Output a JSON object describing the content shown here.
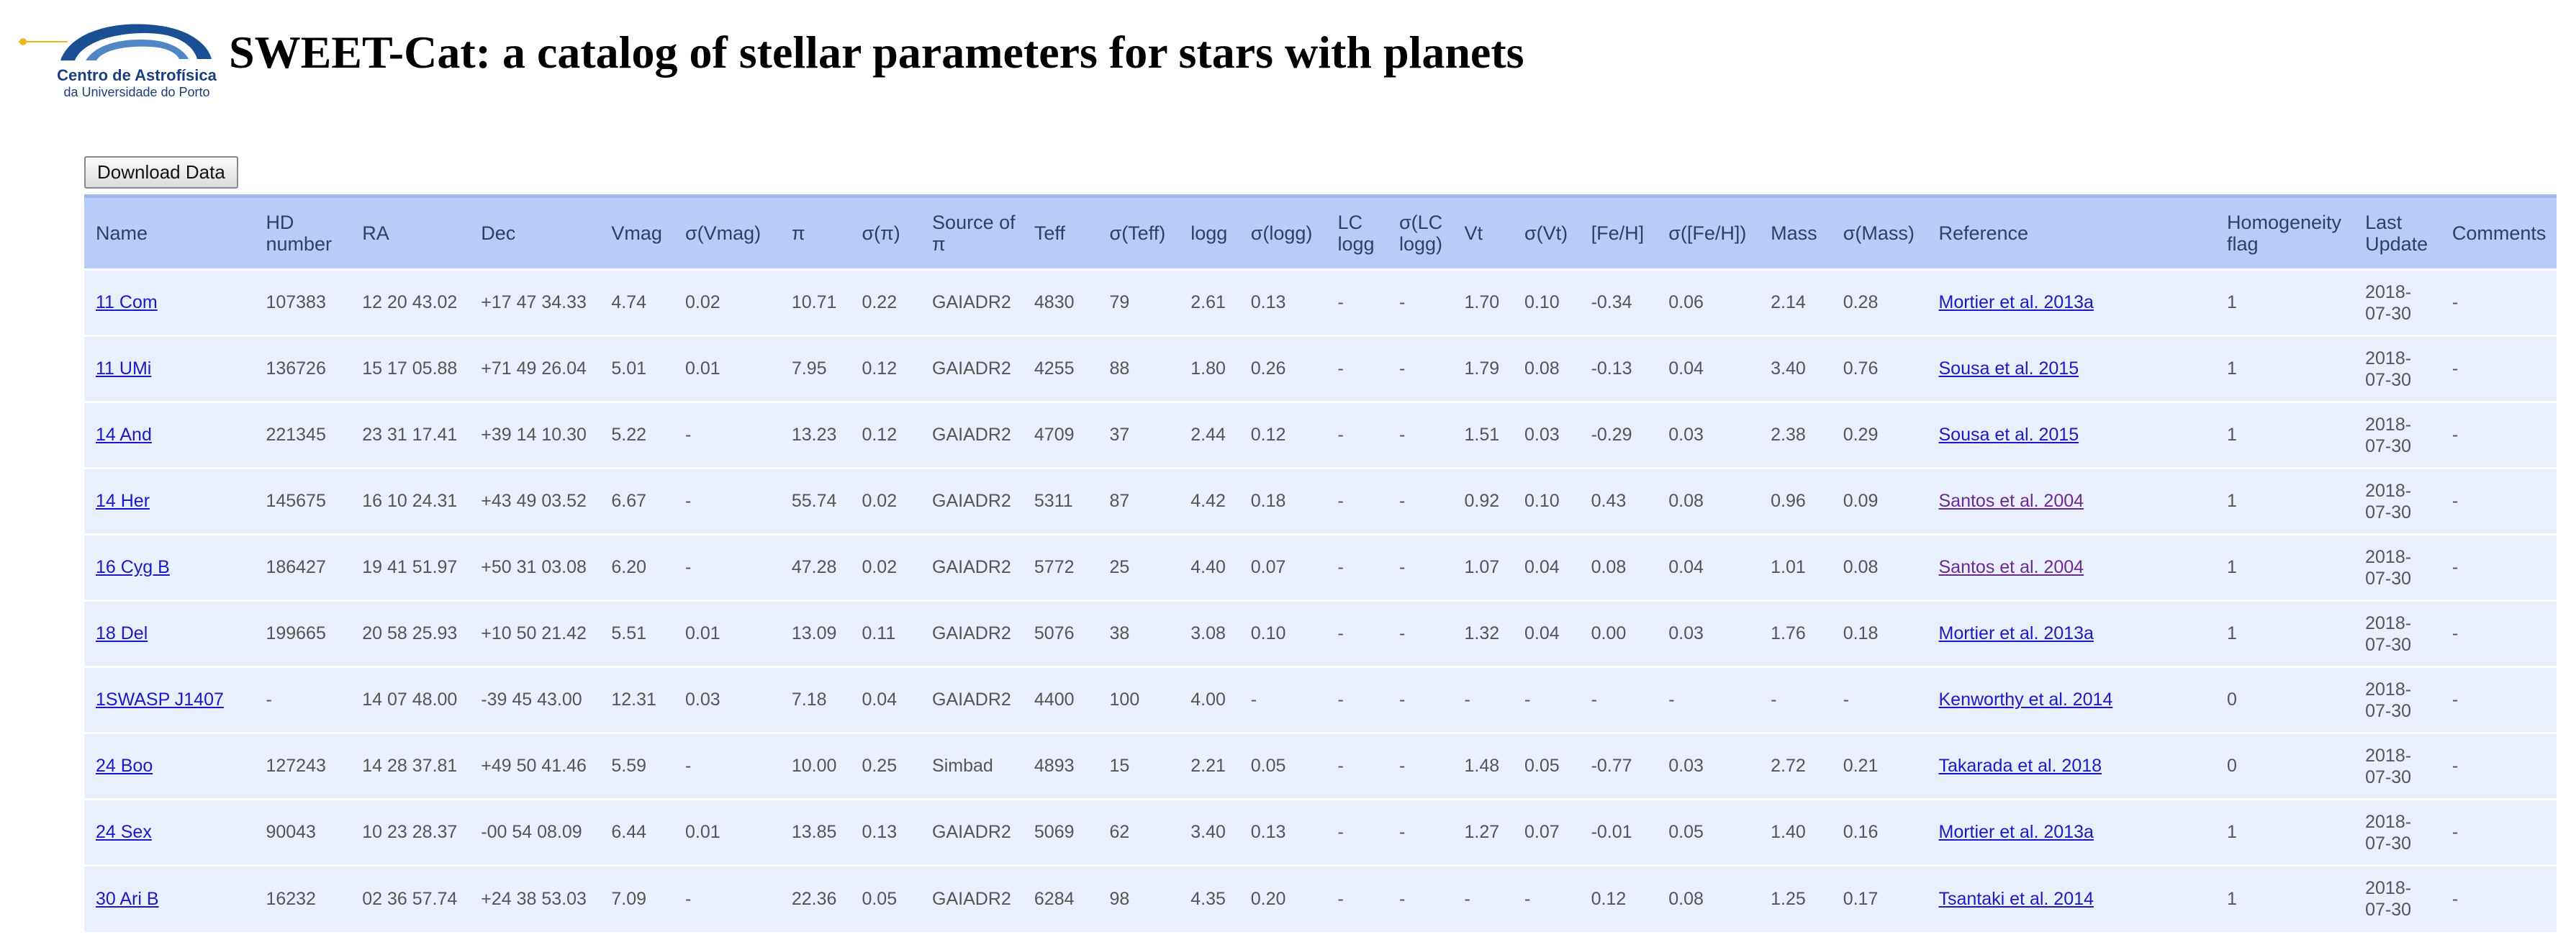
{
  "logo": {
    "name": "Centro de Astrofísica",
    "sub": "da Universidade do Porto"
  },
  "title": "SWEET-Cat: a catalog of stellar parameters for stars with planets",
  "download_label": "Download Data",
  "columns": [
    "Name",
    "HD number",
    "RA",
    "Dec",
    "Vmag",
    "σ(Vmag)",
    "π",
    "σ(π)",
    "Source of π",
    "Teff",
    "σ(Teff)",
    "logg",
    "σ(logg)",
    "LC logg",
    "σ(LC logg)",
    "Vt",
    "σ(Vt)",
    "[Fe/H]",
    "σ([Fe/H])",
    "Mass",
    "σ(Mass)",
    "Reference",
    "Homogeneity flag",
    "Last Update",
    "Comments"
  ],
  "rows": [
    [
      "11 Com",
      "107383",
      "12 20 43.02",
      "+17 47 34.33",
      "4.74",
      "0.02",
      "10.71",
      "0.22",
      "GAIADR2",
      "4830",
      "79",
      "2.61",
      "0.13",
      "-",
      "-",
      "1.70",
      "0.10",
      "-0.34",
      "0.06",
      "2.14",
      "0.28",
      "Mortier et al. 2013a",
      "1",
      "2018-07-30",
      "-"
    ],
    [
      "11 UMi",
      "136726",
      "15 17 05.88",
      "+71 49 26.04",
      "5.01",
      "0.01",
      "7.95",
      "0.12",
      "GAIADR2",
      "4255",
      "88",
      "1.80",
      "0.26",
      "-",
      "-",
      "1.79",
      "0.08",
      "-0.13",
      "0.04",
      "3.40",
      "0.76",
      "Sousa et al. 2015",
      "1",
      "2018-07-30",
      "-"
    ],
    [
      "14 And",
      "221345",
      "23 31 17.41",
      "+39 14 10.30",
      "5.22",
      "-",
      "13.23",
      "0.12",
      "GAIADR2",
      "4709",
      "37",
      "2.44",
      "0.12",
      "-",
      "-",
      "1.51",
      "0.03",
      "-0.29",
      "0.03",
      "2.38",
      "0.29",
      "Sousa et al. 2015",
      "1",
      "2018-07-30",
      "-"
    ],
    [
      "14 Her",
      "145675",
      "16 10 24.31",
      "+43 49 03.52",
      "6.67",
      "-",
      "55.74",
      "0.02",
      "GAIADR2",
      "5311",
      "87",
      "4.42",
      "0.18",
      "-",
      "-",
      "0.92",
      "0.10",
      "0.43",
      "0.08",
      "0.96",
      "0.09",
      "Santos et al. 2004",
      "1",
      "2018-07-30",
      "-"
    ],
    [
      "16 Cyg B",
      "186427",
      "19 41 51.97",
      "+50 31 03.08",
      "6.20",
      "-",
      "47.28",
      "0.02",
      "GAIADR2",
      "5772",
      "25",
      "4.40",
      "0.07",
      "-",
      "-",
      "1.07",
      "0.04",
      "0.08",
      "0.04",
      "1.01",
      "0.08",
      "Santos et al. 2004",
      "1",
      "2018-07-30",
      "-"
    ],
    [
      "18 Del",
      "199665",
      "20 58 25.93",
      "+10 50 21.42",
      "5.51",
      "0.01",
      "13.09",
      "0.11",
      "GAIADR2",
      "5076",
      "38",
      "3.08",
      "0.10",
      "-",
      "-",
      "1.32",
      "0.04",
      "0.00",
      "0.03",
      "1.76",
      "0.18",
      "Mortier et al. 2013a",
      "1",
      "2018-07-30",
      "-"
    ],
    [
      "1SWASP J1407",
      "-",
      "14 07 48.00",
      "-39 45 43.00",
      "12.31",
      "0.03",
      "7.18",
      "0.04",
      "GAIADR2",
      "4400",
      "100",
      "4.00",
      "-",
      "-",
      "-",
      "-",
      "-",
      "-",
      "-",
      "-",
      "-",
      "Kenworthy et al. 2014",
      "0",
      "2018-07-30",
      "-"
    ],
    [
      "24 Boo",
      "127243",
      "14 28 37.81",
      "+49 50 41.46",
      "5.59",
      "-",
      "10.00",
      "0.25",
      "Simbad",
      "4893",
      "15",
      "2.21",
      "0.05",
      "-",
      "-",
      "1.48",
      "0.05",
      "-0.77",
      "0.03",
      "2.72",
      "0.21",
      "Takarada et al. 2018",
      "0",
      "2018-07-30",
      "-"
    ],
    [
      "24 Sex",
      "90043",
      "10 23 28.37",
      "-00 54 08.09",
      "6.44",
      "0.01",
      "13.85",
      "0.13",
      "GAIADR2",
      "5069",
      "62",
      "3.40",
      "0.13",
      "-",
      "-",
      "1.27",
      "0.07",
      "-0.01",
      "0.05",
      "1.40",
      "0.16",
      "Mortier et al. 2013a",
      "1",
      "2018-07-30",
      "-"
    ],
    [
      "30 Ari B",
      "16232",
      "02 36 57.74",
      "+24 38 53.03",
      "7.09",
      "-",
      "22.36",
      "0.05",
      "GAIADR2",
      "6284",
      "98",
      "4.35",
      "0.20",
      "-",
      "-",
      "-",
      "-",
      "0.12",
      "0.08",
      "1.25",
      "0.17",
      "Tsantaki et al. 2014",
      "1",
      "2018-07-30",
      "-"
    ]
  ],
  "visited_references": [
    3,
    4
  ],
  "colors": {
    "header_bg": "#b9ccf7",
    "row_bg": "#e9effd",
    "link": "#1a1ac8",
    "visited_link": "#6b2b8e"
  }
}
